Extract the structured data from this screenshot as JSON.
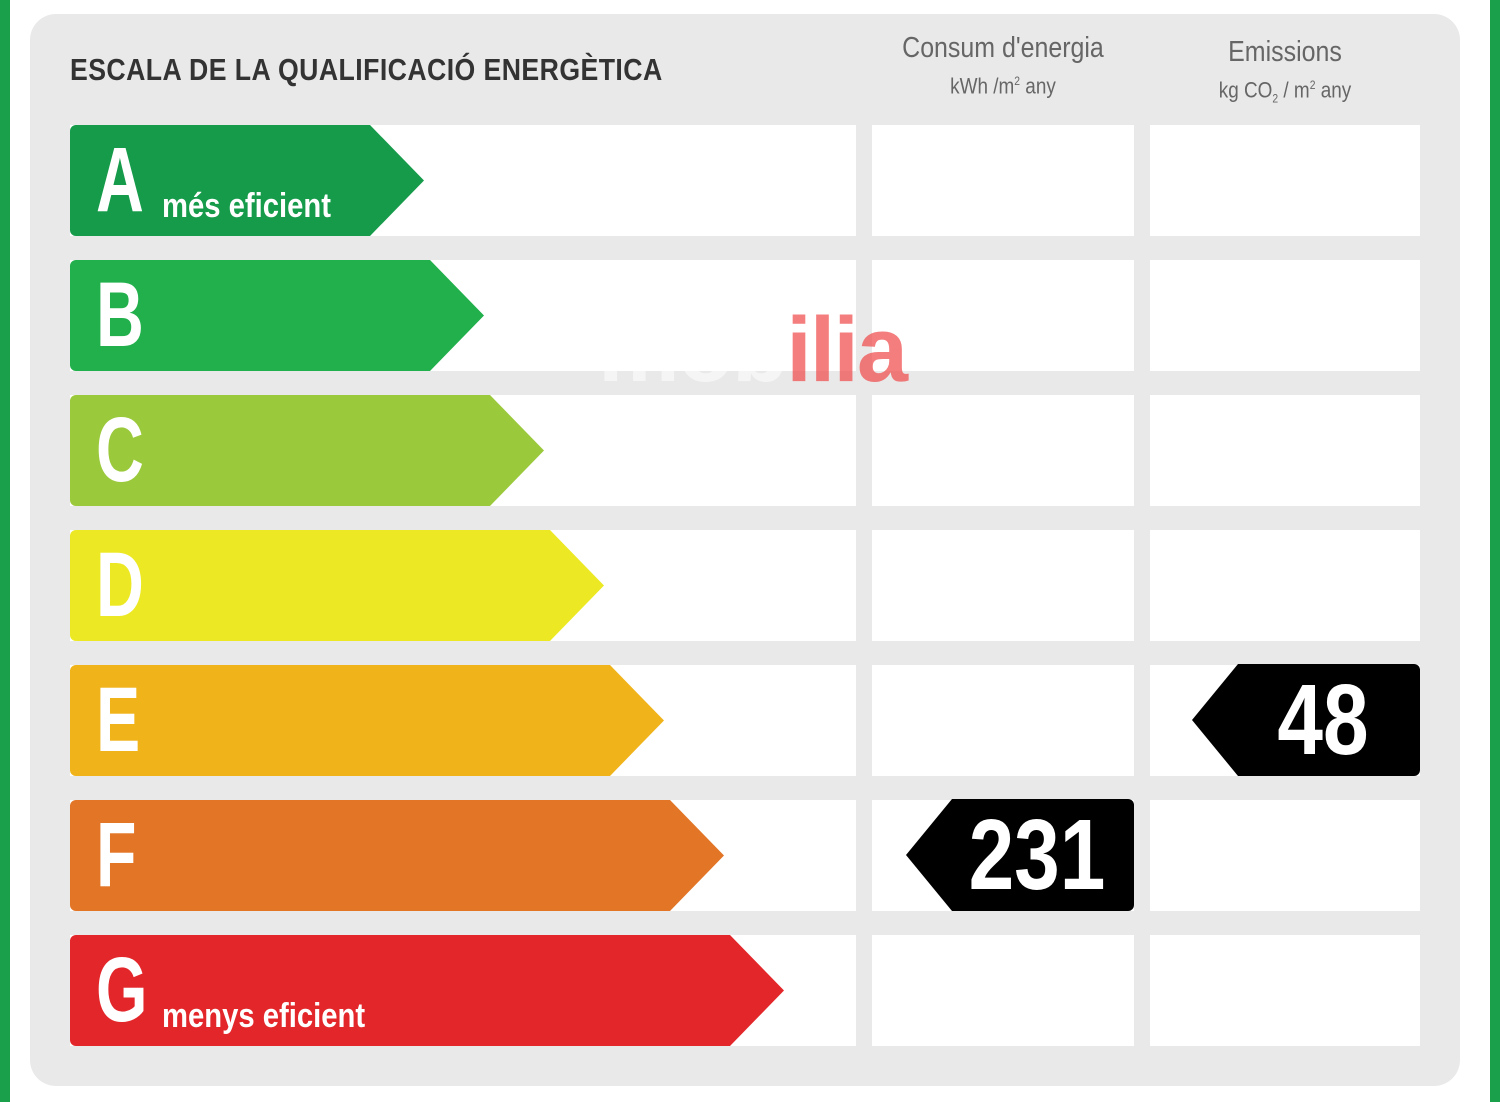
{
  "title": "ESCALA DE LA QUALIFICACIÓ ENERGÈTICA",
  "columns": {
    "energy": {
      "title": "Consum d'energia",
      "unit": {
        "pre": "kWh /m",
        "sup": "2",
        "post": " any"
      }
    },
    "emissions": {
      "title": "Emissions",
      "unit": {
        "pre": "kg CO",
        "sub": "2",
        "mid": " / m",
        "sup": "2",
        "post": " any"
      }
    }
  },
  "bands": [
    {
      "letter": "A",
      "sub": "més eficient",
      "color": "#159b4a"
    },
    {
      "letter": "B",
      "sub": "",
      "color": "#21b04b"
    },
    {
      "letter": "C",
      "sub": "",
      "color": "#9bc93c"
    },
    {
      "letter": "D",
      "sub": "",
      "color": "#ece924"
    },
    {
      "letter": "E",
      "sub": "",
      "color": "#f0b31a"
    },
    {
      "letter": "F",
      "sub": "",
      "color": "#e27526"
    },
    {
      "letter": "G",
      "sub": "menys eficient",
      "color": "#e3262a"
    }
  ],
  "ratings": {
    "energy": {
      "band": "F",
      "value": "231"
    },
    "emissions": {
      "band": "E",
      "value": "48"
    }
  },
  "watermark": {
    "pre": "mob",
    "highlight": "ilia",
    "post": ""
  }
}
